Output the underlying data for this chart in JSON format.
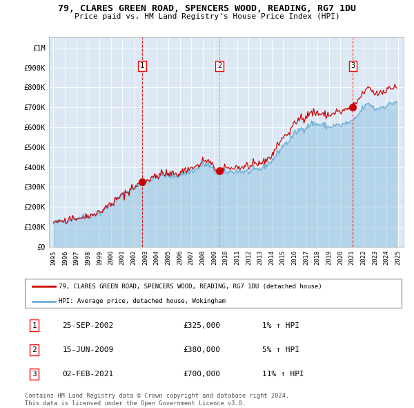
{
  "title1": "79, CLARES GREEN ROAD, SPENCERS WOOD, READING, RG7 1DU",
  "title2": "Price paid vs. HM Land Registry's House Price Index (HPI)",
  "sale_prices": [
    325000,
    380000,
    700000
  ],
  "sale_labels": [
    "1",
    "2",
    "3"
  ],
  "sale_hpi_pct": [
    "1%",
    "5%",
    "11%"
  ],
  "sale_date_labels": [
    "25-SEP-2002",
    "15-JUN-2009",
    "02-FEB-2021"
  ],
  "sale_price_labels": [
    "£325,000",
    "£380,000",
    "£700,000"
  ],
  "sale_year_floats": [
    2002.73,
    2009.46,
    2021.08
  ],
  "legend_line1": "79, CLARES GREEN ROAD, SPENCERS WOOD, READING, RG7 1DU (detached house)",
  "legend_line2": "HPI: Average price, detached house, Wokingham",
  "footer1": "Contains HM Land Registry data © Crown copyright and database right 2024.",
  "footer2": "This data is licensed under the Open Government Licence v3.0.",
  "hpi_color": "#6baed6",
  "price_color": "#cc0000",
  "bg_color": "#dce9f5",
  "vline_colors": [
    "#cc0000",
    "#aaaaaa",
    "#cc0000"
  ],
  "ylim": [
    0,
    1050000
  ],
  "yticks": [
    0,
    100000,
    200000,
    300000,
    400000,
    500000,
    600000,
    700000,
    800000,
    900000,
    1000000
  ],
  "ytick_labels": [
    "£0",
    "£100K",
    "£200K",
    "£300K",
    "£400K",
    "£500K",
    "£600K",
    "£700K",
    "£800K",
    "£900K",
    "£1M"
  ],
  "xlim_start": 1994.6,
  "xlim_end": 2025.5,
  "hpi_anchors_t": [
    1995.0,
    1997.5,
    1999.0,
    2000.0,
    2001.0,
    2002.0,
    2002.75,
    2003.5,
    2004.5,
    2005.5,
    2006.5,
    2007.5,
    2008.0,
    2008.5,
    2009.0,
    2009.5,
    2010.0,
    2011.0,
    2012.0,
    2013.0,
    2014.0,
    2014.5,
    2015.0,
    2015.5,
    2016.0,
    2016.5,
    2017.0,
    2017.5,
    2018.0,
    2018.5,
    2019.0,
    2019.5,
    2020.0,
    2020.5,
    2021.08,
    2021.5,
    2022.0,
    2022.5,
    2023.0,
    2023.5,
    2024.0,
    2024.5,
    2024.9
  ],
  "hpi_anchors_v": [
    120000,
    150000,
    170000,
    210000,
    260000,
    295000,
    322000,
    340000,
    360000,
    355000,
    370000,
    390000,
    415000,
    410000,
    380000,
    362000,
    375000,
    380000,
    378000,
    390000,
    430000,
    470000,
    510000,
    530000,
    570000,
    590000,
    600000,
    620000,
    615000,
    610000,
    600000,
    610000,
    610000,
    620000,
    630000,
    660000,
    700000,
    720000,
    690000,
    700000,
    710000,
    720000,
    730000
  ]
}
